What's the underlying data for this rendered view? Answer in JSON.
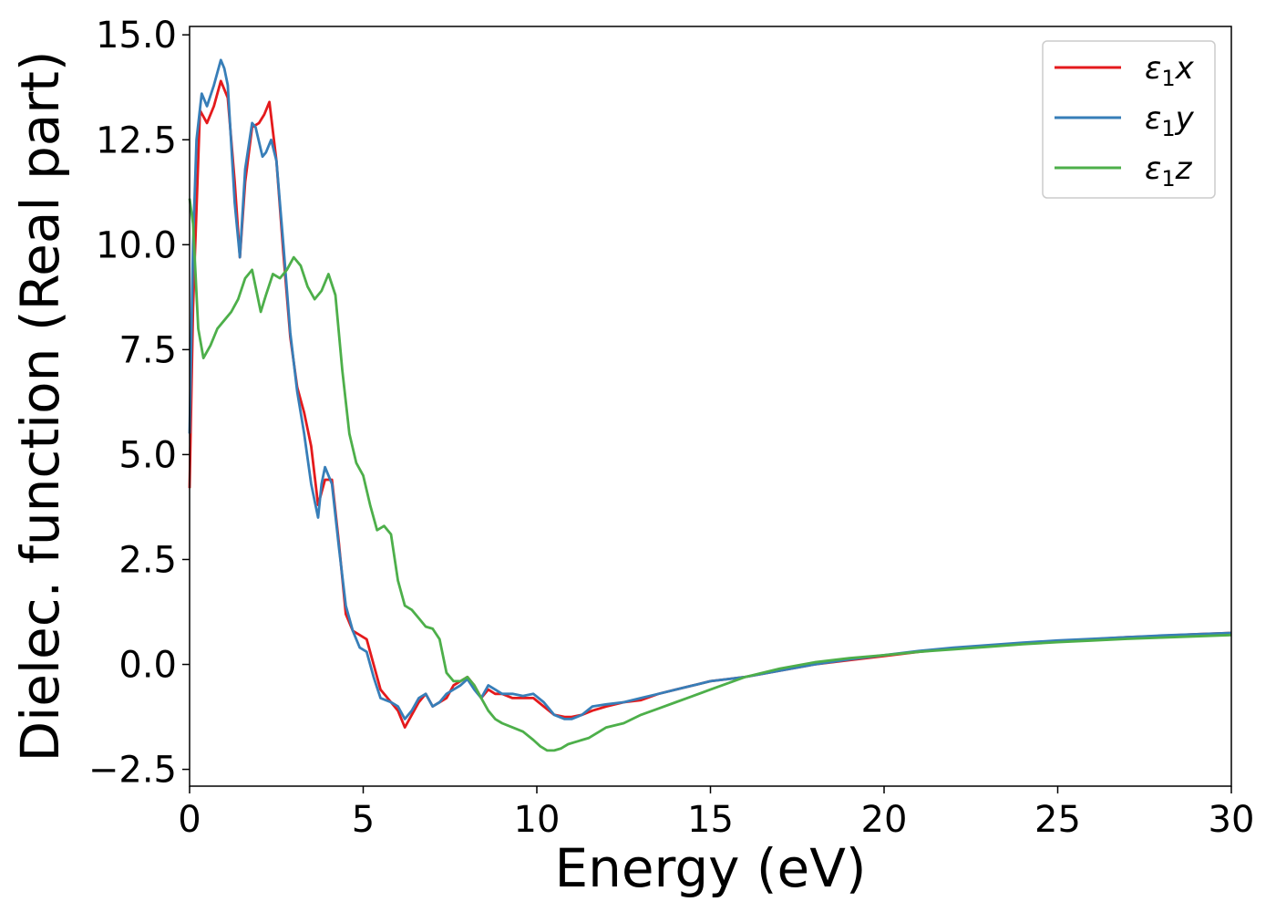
{
  "chart_data": {
    "type": "line",
    "xlabel": "Energy (eV)",
    "ylabel": "Dielec. function (Real part)",
    "xlim": [
      0,
      30
    ],
    "ylim": [
      -2.9,
      15.2
    ],
    "xticks": [
      0,
      5,
      10,
      15,
      20,
      25,
      30
    ],
    "xtick_labels": [
      "0",
      "5",
      "10",
      "15",
      "20",
      "25",
      "30"
    ],
    "yticks": [
      -2.5,
      0,
      2.5,
      5,
      7.5,
      10,
      12.5,
      15
    ],
    "ytick_labels": [
      "−2.5",
      "0.0",
      "2.5",
      "5.0",
      "7.5",
      "10.0",
      "12.5",
      "15.0"
    ],
    "grid": false,
    "legend_position": "top-right",
    "series": [
      {
        "name": "ε1x",
        "color": "#e41a1c",
        "x": [
          0,
          0.1,
          0.3,
          0.5,
          0.7,
          0.9,
          1.1,
          1.3,
          1.45,
          1.6,
          1.8,
          2.0,
          2.15,
          2.3,
          2.5,
          2.7,
          2.9,
          3.1,
          3.3,
          3.5,
          3.7,
          3.9,
          4.1,
          4.3,
          4.5,
          4.7,
          4.9,
          5.1,
          5.3,
          5.5,
          5.8,
          6.0,
          6.2,
          6.4,
          6.6,
          6.8,
          7.0,
          7.2,
          7.4,
          7.6,
          7.8,
          8.0,
          8.2,
          8.4,
          8.6,
          8.8,
          9.0,
          9.3,
          9.6,
          9.9,
          10.2,
          10.5,
          10.8,
          11.0,
          11.3,
          11.6,
          12.0,
          12.5,
          13.0,
          13.5,
          14.0,
          14.5,
          15.0,
          15.5,
          16.0,
          17.0,
          18.0,
          19.0,
          20.0,
          21.0,
          22.0,
          23.0,
          24.0,
          25.0,
          26.0,
          27.0,
          28.0,
          29.0,
          30.0
        ],
        "values": [
          4.2,
          8.5,
          13.2,
          12.9,
          13.3,
          13.9,
          13.5,
          11.5,
          9.7,
          11.5,
          12.8,
          12.9,
          13.1,
          13.4,
          12.0,
          9.8,
          7.8,
          6.6,
          6.0,
          5.2,
          3.8,
          4.4,
          4.4,
          2.9,
          1.2,
          0.8,
          0.7,
          0.6,
          0.0,
          -0.6,
          -0.9,
          -1.1,
          -1.5,
          -1.2,
          -0.9,
          -0.7,
          -1.0,
          -0.9,
          -0.8,
          -0.5,
          -0.4,
          -0.3,
          -0.5,
          -0.8,
          -0.6,
          -0.7,
          -0.7,
          -0.8,
          -0.8,
          -0.8,
          -1.0,
          -1.2,
          -1.25,
          -1.25,
          -1.2,
          -1.1,
          -1.0,
          -0.9,
          -0.85,
          -0.7,
          -0.6,
          -0.5,
          -0.4,
          -0.35,
          -0.3,
          -0.15,
          0.0,
          0.1,
          0.2,
          0.3,
          0.38,
          0.45,
          0.5,
          0.55,
          0.6,
          0.65,
          0.68,
          0.72,
          0.75
        ]
      },
      {
        "name": "ε1y",
        "color": "#377eb8",
        "x": [
          0,
          0.1,
          0.2,
          0.35,
          0.5,
          0.7,
          0.9,
          1.0,
          1.1,
          1.3,
          1.45,
          1.6,
          1.8,
          1.9,
          2.1,
          2.2,
          2.35,
          2.5,
          2.7,
          2.9,
          3.1,
          3.3,
          3.5,
          3.7,
          3.8,
          3.9,
          4.1,
          4.3,
          4.5,
          4.7,
          4.9,
          5.1,
          5.3,
          5.5,
          5.8,
          6.0,
          6.2,
          6.4,
          6.6,
          6.8,
          7.0,
          7.2,
          7.4,
          7.6,
          7.8,
          8.0,
          8.2,
          8.4,
          8.6,
          8.8,
          9.0,
          9.3,
          9.6,
          9.9,
          10.2,
          10.5,
          10.8,
          11.0,
          11.3,
          11.6,
          12.0,
          12.5,
          13.0,
          13.5,
          14.0,
          14.5,
          15.0,
          15.5,
          16.0,
          17.0,
          18.0,
          19.0,
          20.0,
          21.0,
          22.0,
          23.0,
          24.0,
          25.0,
          26.0,
          27.0,
          28.0,
          29.0,
          30.0
        ],
        "values": [
          5.5,
          10.0,
          12.5,
          13.6,
          13.3,
          13.8,
          14.4,
          14.2,
          13.8,
          11.0,
          9.7,
          11.8,
          12.9,
          12.8,
          12.1,
          12.2,
          12.5,
          12.0,
          10.0,
          7.9,
          6.5,
          5.5,
          4.3,
          3.5,
          4.3,
          4.7,
          4.3,
          2.8,
          1.4,
          0.8,
          0.4,
          0.3,
          -0.3,
          -0.8,
          -0.9,
          -1.0,
          -1.3,
          -1.1,
          -0.8,
          -0.7,
          -1.0,
          -0.9,
          -0.7,
          -0.6,
          -0.5,
          -0.35,
          -0.6,
          -0.8,
          -0.5,
          -0.6,
          -0.7,
          -0.7,
          -0.75,
          -0.7,
          -0.9,
          -1.2,
          -1.3,
          -1.3,
          -1.2,
          -1.0,
          -0.95,
          -0.9,
          -0.8,
          -0.7,
          -0.6,
          -0.5,
          -0.4,
          -0.35,
          -0.3,
          -0.15,
          0.0,
          0.12,
          0.22,
          0.32,
          0.4,
          0.46,
          0.52,
          0.57,
          0.61,
          0.65,
          0.69,
          0.72,
          0.75
        ]
      },
      {
        "name": "ε1z",
        "color": "#4daf4a",
        "x": [
          0,
          0.1,
          0.25,
          0.4,
          0.6,
          0.8,
          1.0,
          1.2,
          1.4,
          1.6,
          1.8,
          1.9,
          2.05,
          2.2,
          2.4,
          2.6,
          2.8,
          3.0,
          3.2,
          3.4,
          3.6,
          3.8,
          4.0,
          4.2,
          4.4,
          4.6,
          4.8,
          5.0,
          5.2,
          5.4,
          5.6,
          5.8,
          6.0,
          6.2,
          6.4,
          6.6,
          6.8,
          7.0,
          7.2,
          7.4,
          7.6,
          7.8,
          8.0,
          8.2,
          8.4,
          8.6,
          8.8,
          9.0,
          9.3,
          9.6,
          9.9,
          10.1,
          10.3,
          10.5,
          10.7,
          10.9,
          11.1,
          11.3,
          11.5,
          11.8,
          12.0,
          12.5,
          13.0,
          13.5,
          14.0,
          14.5,
          15.0,
          15.5,
          16.0,
          17.0,
          18.0,
          19.0,
          20.0,
          21.0,
          22.0,
          23.0,
          24.0,
          25.0,
          26.0,
          27.0,
          28.0,
          29.0,
          30.0
        ],
        "values": [
          11.1,
          10.5,
          8.0,
          7.3,
          7.6,
          8.0,
          8.2,
          8.4,
          8.7,
          9.2,
          9.4,
          9.0,
          8.4,
          8.8,
          9.3,
          9.2,
          9.4,
          9.7,
          9.5,
          9.0,
          8.7,
          8.9,
          9.3,
          8.8,
          7.0,
          5.5,
          4.8,
          4.5,
          3.8,
          3.2,
          3.3,
          3.1,
          2.0,
          1.4,
          1.3,
          1.1,
          0.9,
          0.85,
          0.6,
          -0.2,
          -0.4,
          -0.4,
          -0.3,
          -0.5,
          -0.8,
          -1.1,
          -1.3,
          -1.4,
          -1.5,
          -1.6,
          -1.8,
          -1.95,
          -2.05,
          -2.05,
          -2.0,
          -1.9,
          -1.85,
          -1.8,
          -1.75,
          -1.6,
          -1.5,
          -1.4,
          -1.2,
          -1.05,
          -0.9,
          -0.75,
          -0.6,
          -0.45,
          -0.3,
          -0.1,
          0.05,
          0.15,
          0.22,
          0.3,
          0.36,
          0.42,
          0.48,
          0.53,
          0.57,
          0.61,
          0.64,
          0.67,
          0.7
        ]
      }
    ]
  }
}
